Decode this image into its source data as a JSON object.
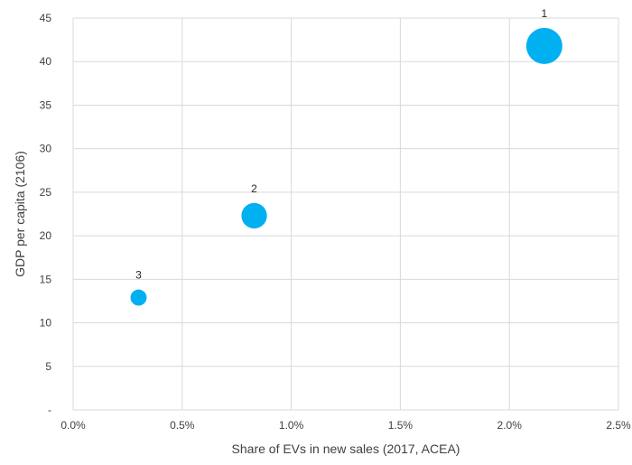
{
  "chart_data": {
    "type": "scatter",
    "title": "",
    "xlabel": "Share of EVs in new sales (2017, ACEA)",
    "ylabel": "GDP per capita (2106)",
    "xlim": [
      0,
      0.025
    ],
    "ylim": [
      0,
      45
    ],
    "x_ticks": [
      "0.0%",
      "0.5%",
      "1.0%",
      "1.5%",
      "2.0%",
      "2.5%"
    ],
    "x_tick_values": [
      0,
      0.005,
      0.01,
      0.015,
      0.02,
      0.025
    ],
    "y_ticks": [
      "-",
      "5",
      "10",
      "15",
      "20",
      "25",
      "30",
      "35",
      "40",
      "45"
    ],
    "y_tick_values": [
      0,
      5,
      10,
      15,
      20,
      25,
      30,
      35,
      40,
      45
    ],
    "grid": true,
    "legend": "none",
    "bubble_color": "#00b0f0",
    "points": [
      {
        "label": "1",
        "x": 0.0216,
        "y": 41.8,
        "size": 3
      },
      {
        "label": "2",
        "x": 0.0083,
        "y": 22.3,
        "size": 1.5
      },
      {
        "label": "3",
        "x": 0.003,
        "y": 12.9,
        "size": 0.6
      }
    ]
  }
}
